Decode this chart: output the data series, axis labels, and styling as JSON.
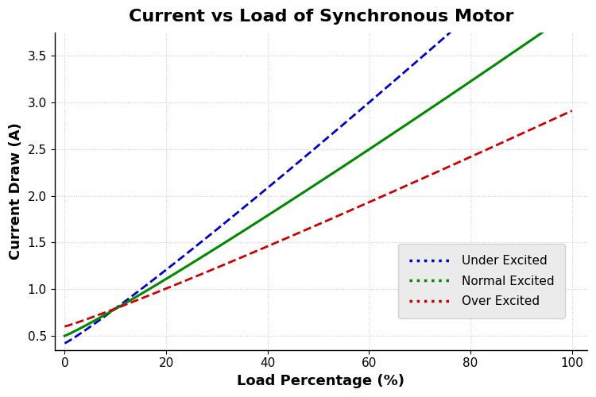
{
  "title": "Current vs Load of Synchronous Motor",
  "xlabel": "Load Percentage (%)",
  "ylabel": "Current Draw (A)",
  "xlim": [
    -2,
    103
  ],
  "ylim": [
    0.35,
    3.75
  ],
  "xticks": [
    0,
    20,
    40,
    60,
    80,
    100
  ],
  "yticks": [
    0.5,
    1.0,
    1.5,
    2.0,
    2.5,
    3.0,
    3.5
  ],
  "lines": [
    {
      "label": "Under Excited",
      "color": "#0000CC",
      "plot_linestyle": "dashed",
      "legend_linestyle": "dotted",
      "linewidth": 2.0,
      "a": 0.42,
      "b": 0.031,
      "power": 1.08
    },
    {
      "label": "Normal Excited",
      "color": "#008800",
      "plot_linestyle": "solid",
      "legend_linestyle": "dotted",
      "linewidth": 2.2,
      "a": 0.5,
      "b": 0.024,
      "power": 1.08
    },
    {
      "label": "Over Excited",
      "color": "#CC0000",
      "plot_linestyle": "dashed",
      "legend_linestyle": "dotted",
      "linewidth": 2.0,
      "a": 0.6,
      "b": 0.016,
      "power": 1.08
    }
  ],
  "title_fontsize": 16,
  "label_fontsize": 13,
  "tick_fontsize": 11,
  "legend_fontsize": 11,
  "background_color": "#ffffff",
  "grid_color": "#cccccc",
  "grid_linestyle": "dotted"
}
